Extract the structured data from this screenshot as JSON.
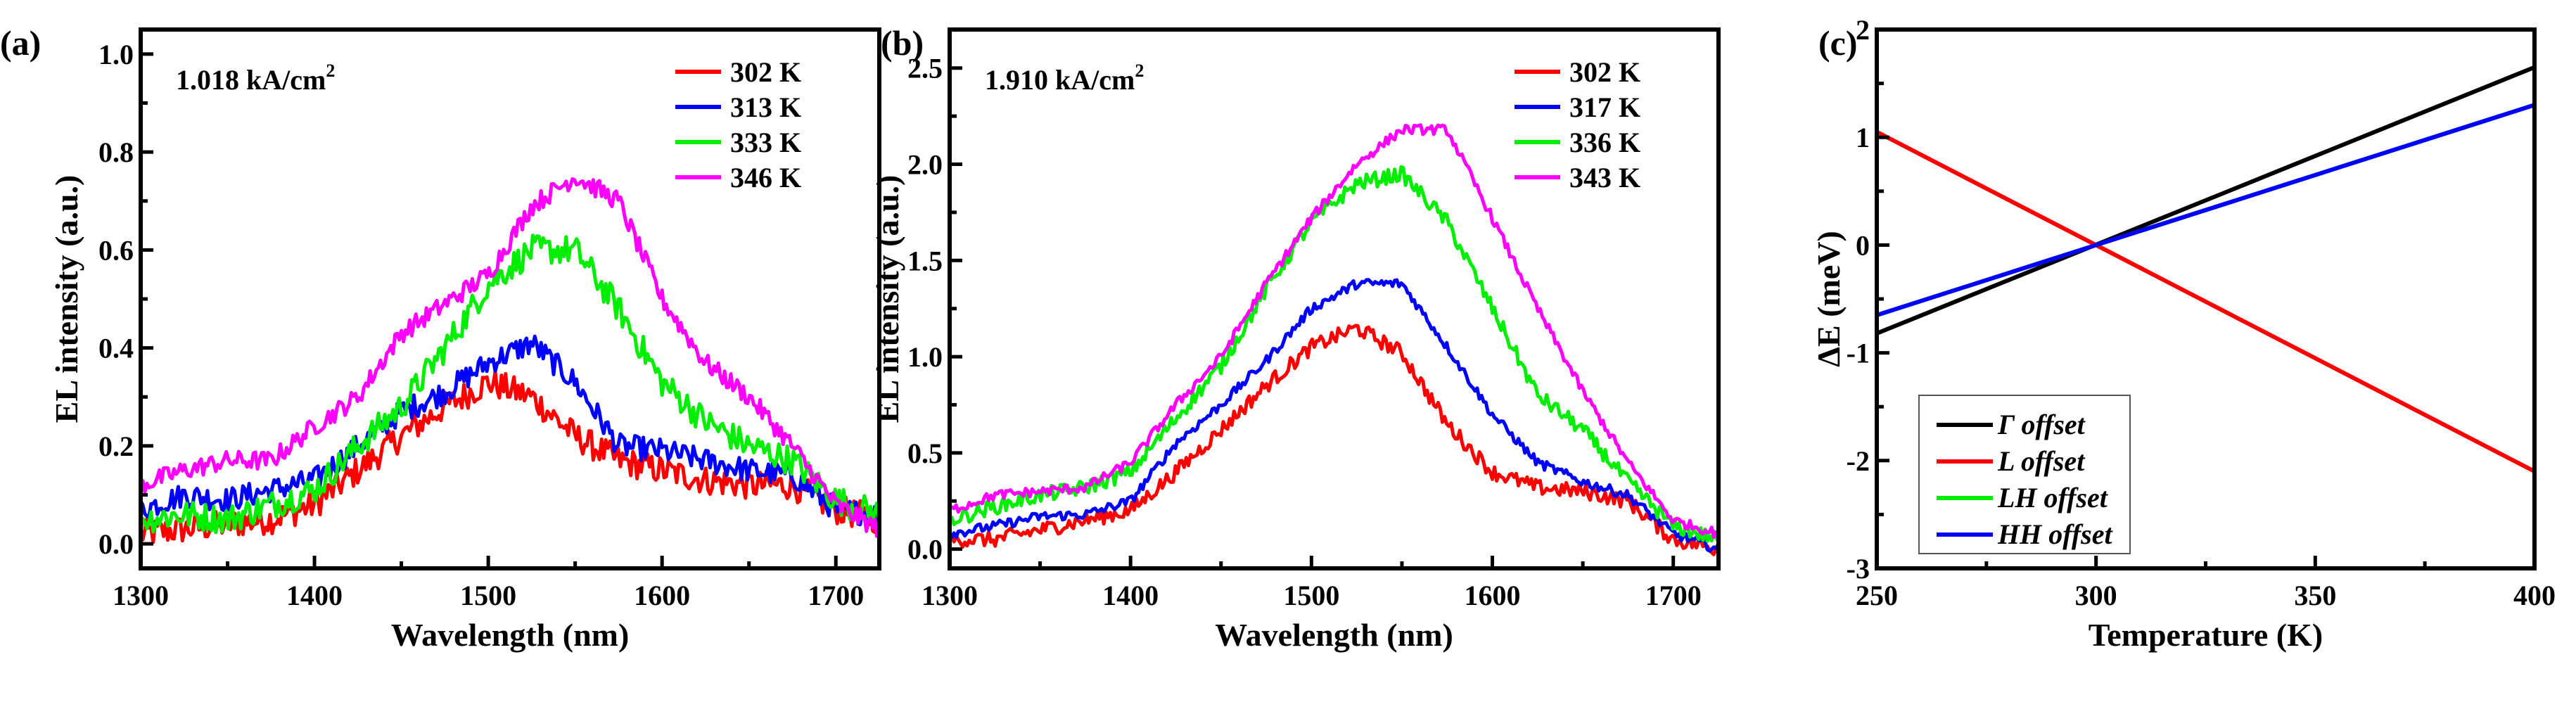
{
  "chart_data": [
    {
      "panel_label": "(a)",
      "type": "line",
      "annotation": {
        "text": "1.018 kA/cm",
        "superscript": "2"
      },
      "xlabel": "Wavelength (nm)",
      "ylabel": "EL intensity (a.u.)",
      "xlim": [
        1300,
        1725
      ],
      "ylim": [
        -0.05,
        1.05
      ],
      "xticks": [
        1300,
        1400,
        1500,
        1600,
        1700
      ],
      "xtick_labels": [
        "1300",
        "1400",
        "1500",
        "1600",
        "1700"
      ],
      "yticks": [
        0.0,
        0.2,
        0.4,
        0.6,
        0.8,
        1.0
      ],
      "ytick_labels": [
        "0.0",
        "0.2",
        "0.4",
        "0.6",
        "0.8",
        "1.0"
      ],
      "legend_position": "top-right",
      "x": [
        1300,
        1325,
        1350,
        1375,
        1400,
        1425,
        1450,
        1475,
        1500,
        1525,
        1550,
        1575,
        1600,
        1625,
        1650,
        1675,
        1700,
        1725
      ],
      "series": [
        {
          "name": "302 K",
          "color": "#ff0000",
          "noise": 0.03,
          "values": [
            0.02,
            0.03,
            0.04,
            0.05,
            0.08,
            0.15,
            0.22,
            0.28,
            0.33,
            0.3,
            0.22,
            0.17,
            0.15,
            0.13,
            0.12,
            0.12,
            0.07,
            0.05
          ]
        },
        {
          "name": "313 K",
          "color": "#0000ff",
          "noise": 0.025,
          "values": [
            0.07,
            0.1,
            0.09,
            0.11,
            0.13,
            0.2,
            0.27,
            0.31,
            0.37,
            0.41,
            0.33,
            0.2,
            0.19,
            0.17,
            0.15,
            0.14,
            0.07,
            0.06
          ]
        },
        {
          "name": "333 K",
          "color": "#00ee00",
          "noise": 0.03,
          "values": [
            0.05,
            0.06,
            0.05,
            0.08,
            0.11,
            0.2,
            0.28,
            0.4,
            0.53,
            0.6,
            0.6,
            0.48,
            0.33,
            0.25,
            0.2,
            0.17,
            0.09,
            0.06
          ]
        },
        {
          "name": "346 K",
          "color": "#ff00ff",
          "noise": 0.02,
          "values": [
            0.12,
            0.15,
            0.17,
            0.17,
            0.24,
            0.3,
            0.43,
            0.49,
            0.55,
            0.69,
            0.75,
            0.7,
            0.5,
            0.37,
            0.3,
            0.2,
            0.08,
            0.03
          ]
        }
      ]
    },
    {
      "panel_label": "(b)",
      "type": "line",
      "annotation": {
        "text": "1.910 kA/cm",
        "superscript": "2"
      },
      "xlabel": "Wavelength (nm)",
      "ylabel": "EL intensity (a.u.)",
      "xlim": [
        1300,
        1725
      ],
      "ylim": [
        -0.1,
        2.7
      ],
      "xticks": [
        1300,
        1400,
        1500,
        1600,
        1700
      ],
      "xtick_labels": [
        "1300",
        "1400",
        "1500",
        "1600",
        "1700"
      ],
      "yticks": [
        0.0,
        0.5,
        1.0,
        1.5,
        2.0,
        2.5
      ],
      "ytick_labels": [
        "0.0",
        "0.5",
        "1.0",
        "1.5",
        "2.0",
        "2.5"
      ],
      "legend_position": "top-right",
      "x": [
        1300,
        1325,
        1350,
        1375,
        1400,
        1425,
        1450,
        1475,
        1500,
        1525,
        1550,
        1575,
        1600,
        1625,
        1650,
        1675,
        1700,
        1725
      ],
      "series": [
        {
          "name": "302 K",
          "color": "#ff0000",
          "noise": 0.04,
          "values": [
            0.05,
            0.05,
            0.1,
            0.15,
            0.2,
            0.4,
            0.62,
            0.85,
            1.05,
            1.15,
            1.02,
            0.65,
            0.4,
            0.32,
            0.3,
            0.25,
            0.05,
            0.0
          ]
        },
        {
          "name": "317 K",
          "color": "#0000ff",
          "noise": 0.025,
          "values": [
            0.08,
            0.12,
            0.17,
            0.18,
            0.25,
            0.55,
            0.75,
            0.98,
            1.25,
            1.38,
            1.38,
            1.05,
            0.7,
            0.45,
            0.35,
            0.28,
            0.08,
            0.0
          ]
        },
        {
          "name": "336 K",
          "color": "#00ee00",
          "noise": 0.04,
          "values": [
            0.15,
            0.22,
            0.28,
            0.32,
            0.4,
            0.68,
            0.95,
            1.35,
            1.7,
            1.9,
            1.95,
            1.7,
            1.25,
            0.8,
            0.62,
            0.35,
            0.12,
            0.05
          ]
        },
        {
          "name": "343 K",
          "color": "#ff00ff",
          "noise": 0.025,
          "values": [
            0.2,
            0.28,
            0.3,
            0.32,
            0.45,
            0.75,
            1.0,
            1.38,
            1.72,
            2.0,
            2.18,
            2.18,
            1.72,
            1.25,
            0.82,
            0.45,
            0.15,
            0.08
          ]
        }
      ]
    },
    {
      "panel_label": "(c)",
      "type": "line",
      "xlabel": "Temperature (K)",
      "ylabel": "ΔE (meV)",
      "xlim": [
        250,
        400
      ],
      "ylim": [
        -3,
        2
      ],
      "xticks": [
        250,
        300,
        350,
        400
      ],
      "xtick_labels": [
        "250",
        "300",
        "350",
        "400"
      ],
      "yticks": [
        -3,
        -2,
        -1,
        0,
        1,
        2
      ],
      "ytick_labels": [
        "-3",
        "-2",
        "-1",
        "0",
        "1",
        "2"
      ],
      "legend_position": "bottom-left",
      "x": [
        250,
        400
      ],
      "series": [
        {
          "name": "Γ offset",
          "color": "#000000",
          "noise": 0,
          "values": [
            -0.82,
            1.65
          ]
        },
        {
          "name": "L offset",
          "color": "#ff0000",
          "noise": 0,
          "values": [
            1.05,
            -2.1
          ]
        },
        {
          "name": "LH offset",
          "color": "#00ee00",
          "noise": 0,
          "values": [
            -0.65,
            1.3
          ]
        },
        {
          "name": "HH offset",
          "color": "#0000ff",
          "noise": 0,
          "values": [
            -0.65,
            1.3
          ]
        }
      ]
    }
  ]
}
